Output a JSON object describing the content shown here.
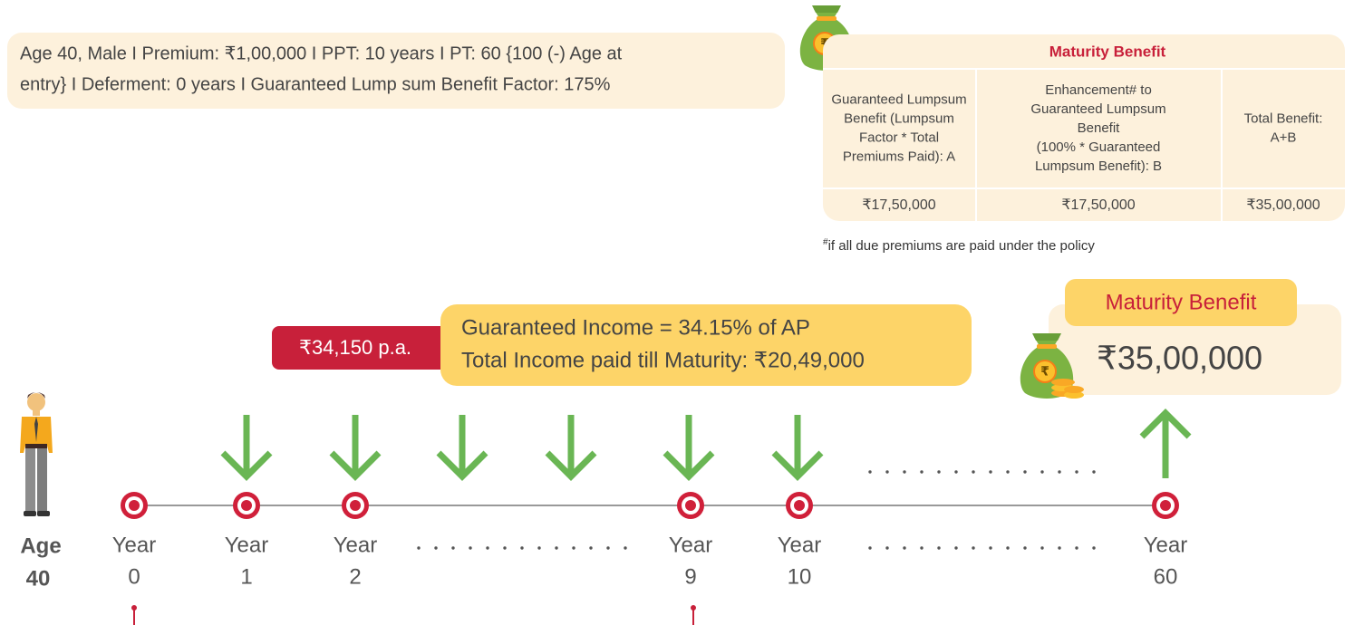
{
  "info": {
    "lines": [
      "Age 40, Male  I  Premium: ₹1,00,000  I  PPT: 10 years  I  PT: 60 {100 (-) Age at",
      "entry} I Deferment: 0 years  I  Guaranteed Lump sum Benefit Factor: 175%"
    ]
  },
  "table": {
    "title": "Maturity Benefit",
    "headers": [
      [
        "Guaranteed Lumpsum",
        "Benefit (Lumpsum",
        "Factor * Total",
        "Premiums Paid): A"
      ],
      [
        "Enhancement# to",
        "Guaranteed Lumpsum",
        "Benefit",
        "(100% * Guaranteed",
        "Lumpsum Benefit): B"
      ],
      [
        "Total Benefit:",
        "A+B"
      ]
    ],
    "values": [
      "₹17,50,000",
      "₹17,50,000",
      "₹35,00,000"
    ]
  },
  "footnote": {
    "mark": "#",
    "text": "if all due premiums are paid under the policy"
  },
  "income": {
    "amount": "₹34,150 p.a.",
    "lines": [
      "Guaranteed Income = 34.15% of AP",
      "Total Income paid till Maturity: ₹20,49,000"
    ]
  },
  "maturity": {
    "label": "Maturity Benefit",
    "amount": "₹35,00,000"
  },
  "timeline": {
    "start": [
      "Age",
      "40"
    ],
    "points": [
      {
        "label": "Year",
        "number": "0"
      },
      {
        "label": "Year",
        "number": "1"
      },
      {
        "label": "Year",
        "number": "2"
      },
      {
        "label": "Year",
        "number": "9"
      },
      {
        "label": "Year",
        "number": "10"
      },
      {
        "label": "Year",
        "number": "60"
      }
    ]
  }
}
